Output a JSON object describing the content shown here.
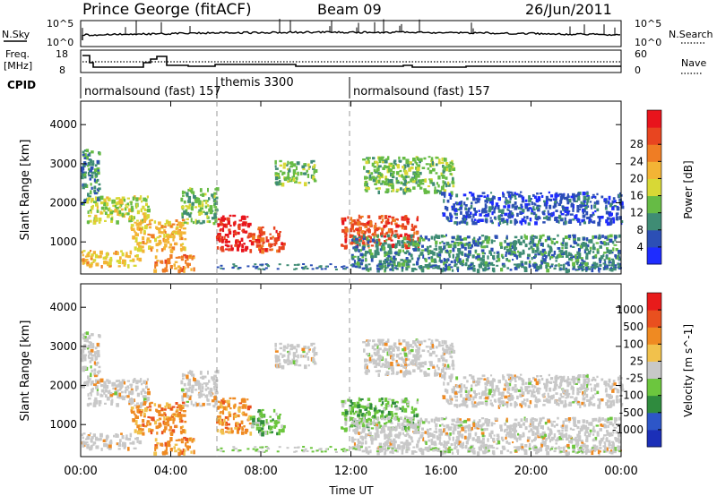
{
  "header": {
    "station": "Prince George (fitACF)",
    "beam": "Beam 09",
    "date": "26/Jun/2011"
  },
  "panels": {
    "nsky": {
      "left_label": "N.Sky",
      "right_label": "N.Search",
      "ticks_left": [
        "10^5",
        "10^0"
      ],
      "ticks_right": [
        "10^5",
        "10^0"
      ]
    },
    "freq": {
      "left_label_1": "Freq.",
      "left_label_2": "[MHz]",
      "right_label": "Nave",
      "ticks_left": [
        "18",
        "8"
      ],
      "ticks_right": [
        "60",
        "0"
      ]
    },
    "cpid": {
      "label": "CPID",
      "segments": [
        {
          "label": "normalsound (fast) 157",
          "start_hour": 0
        },
        {
          "label": "themis 3300",
          "start_hour": 6
        },
        {
          "label": "normalsound (fast) 157",
          "start_hour": 12
        }
      ]
    }
  },
  "chart_data": [
    {
      "type": "heatmap",
      "title": "",
      "ylabel": "Slant Range [km]",
      "xlabel": "Time UT",
      "y_ticks": [
        "1000",
        "2000",
        "3000",
        "4000"
      ],
      "ylim": [
        180,
        4600
      ],
      "x_ticks": [
        "00:00",
        "04:00",
        "08:00",
        "12:00",
        "16:00",
        "20:00",
        "00:00"
      ],
      "xlim_hours": [
        0,
        24
      ],
      "colorbar": {
        "label": "Power [dB]",
        "tick_labels": [
          "4",
          "8",
          "12",
          "16",
          "20",
          "24",
          "28"
        ],
        "colors": [
          "#1e2cff",
          "#2c4fb5",
          "#3f8c74",
          "#66bb45",
          "#d8d836",
          "#f3b435",
          "#ef7d24",
          "#e84520",
          "#e8141c"
        ]
      },
      "regions": [
        {
          "start_hour": 0.0,
          "end_hour": 0.8,
          "range_km": [
            2000,
            3400
          ],
          "level": 2
        },
        {
          "start_hour": 0.2,
          "end_hour": 3.0,
          "range_km": [
            1500,
            2200
          ],
          "level": 4
        },
        {
          "start_hour": 0.0,
          "end_hour": 2.6,
          "range_km": [
            400,
            800
          ],
          "level": 5
        },
        {
          "start_hour": 2.2,
          "end_hour": 4.6,
          "range_km": [
            800,
            1600
          ],
          "level": 5
        },
        {
          "start_hour": 3.2,
          "end_hour": 5.0,
          "range_km": [
            300,
            700
          ],
          "level": 6
        },
        {
          "start_hour": 4.4,
          "end_hour": 6.0,
          "range_km": [
            1500,
            2400
          ],
          "level": 3
        },
        {
          "start_hour": 6.0,
          "end_hour": 7.5,
          "range_km": [
            800,
            1700
          ],
          "level": 8
        },
        {
          "start_hour": 7.5,
          "end_hour": 9.0,
          "range_km": [
            800,
            1400
          ],
          "level": 7
        },
        {
          "start_hour": 8.6,
          "end_hour": 10.4,
          "range_km": [
            2500,
            3100
          ],
          "level": 3
        },
        {
          "start_hour": 11.5,
          "end_hour": 15.0,
          "range_km": [
            900,
            1700
          ],
          "level": 7
        },
        {
          "start_hour": 12.5,
          "end_hour": 16.5,
          "range_km": [
            2300,
            3200
          ],
          "level": 3
        },
        {
          "start_hour": 12.0,
          "end_hour": 24.0,
          "range_km": [
            300,
            1200
          ],
          "level": 2
        },
        {
          "start_hour": 16.0,
          "end_hour": 24.0,
          "range_km": [
            1500,
            2300
          ],
          "level": 1
        }
      ]
    },
    {
      "type": "heatmap",
      "title": "",
      "ylabel": "Slant Range [km]",
      "xlabel": "Time UT",
      "y_ticks": [
        "1000",
        "2000",
        "3000",
        "4000"
      ],
      "ylim": [
        180,
        4600
      ],
      "x_ticks": [
        "00:00",
        "04:00",
        "08:00",
        "12:00",
        "16:00",
        "20:00",
        "00:00"
      ],
      "xlim_hours": [
        0,
        24
      ],
      "colorbar": {
        "label": "Velocity [m s^-1]",
        "tick_labels": [
          "1000",
          "500",
          "100",
          "25",
          "-25",
          "-100",
          "-500",
          "-1000"
        ],
        "colors": [
          "#1b2fb8",
          "#2d56c8",
          "#2f8b3e",
          "#6cc63e",
          "#c8c8c8",
          "#f1c14c",
          "#ef8a22",
          "#e9501f",
          "#e81b1b"
        ]
      },
      "regions": [
        {
          "start_hour": 0.0,
          "end_hour": 0.8,
          "range_km": [
            2000,
            3400
          ],
          "level": 4
        },
        {
          "start_hour": 0.2,
          "end_hour": 3.0,
          "range_km": [
            1500,
            2200
          ],
          "level": 4
        },
        {
          "start_hour": 0.0,
          "end_hour": 2.6,
          "range_km": [
            400,
            800
          ],
          "level": 4
        },
        {
          "start_hour": 2.2,
          "end_hour": 4.6,
          "range_km": [
            800,
            1600
          ],
          "level": 6
        },
        {
          "start_hour": 3.2,
          "end_hour": 5.0,
          "range_km": [
            300,
            700
          ],
          "level": 6
        },
        {
          "start_hour": 4.4,
          "end_hour": 6.0,
          "range_km": [
            1500,
            2400
          ],
          "level": 4
        },
        {
          "start_hour": 6.0,
          "end_hour": 7.5,
          "range_km": [
            800,
            1700
          ],
          "level": 6
        },
        {
          "start_hour": 7.5,
          "end_hour": 9.0,
          "range_km": [
            800,
            1400
          ],
          "level": 3
        },
        {
          "start_hour": 8.6,
          "end_hour": 10.4,
          "range_km": [
            2500,
            3100
          ],
          "level": 4
        },
        {
          "start_hour": 11.5,
          "end_hour": 15.0,
          "range_km": [
            900,
            1700
          ],
          "level": 3
        },
        {
          "start_hour": 12.5,
          "end_hour": 16.5,
          "range_km": [
            2300,
            3200
          ],
          "level": 4
        },
        {
          "start_hour": 12.0,
          "end_hour": 24.0,
          "range_km": [
            300,
            1200
          ],
          "level": 4
        },
        {
          "start_hour": 16.0,
          "end_hour": 24.0,
          "range_km": [
            1500,
            2300
          ],
          "level": 4
        }
      ]
    }
  ]
}
